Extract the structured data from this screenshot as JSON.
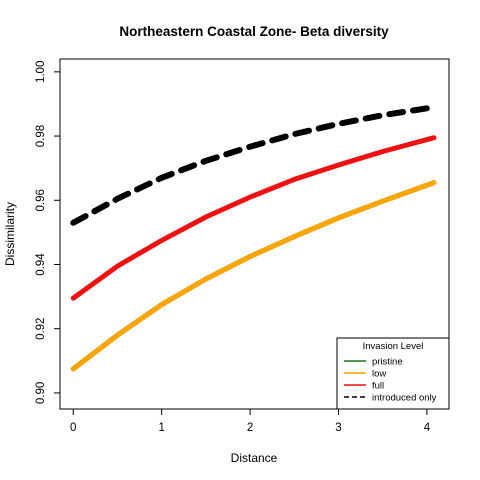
{
  "chart_data": {
    "type": "line",
    "title": "Northeastern Coastal Zone- Beta diversity",
    "xlabel": "Distance",
    "ylabel": "Dissimilarity",
    "xlim": [
      -0.15,
      4.25
    ],
    "ylim": [
      0.895,
      1.004
    ],
    "xticks": [
      0,
      1,
      2,
      3,
      4
    ],
    "xtick_labels": [
      "0",
      "1",
      "2",
      "3",
      "4"
    ],
    "yticks": [
      0.9,
      0.92,
      0.94,
      0.96,
      0.98,
      1.0
    ],
    "ytick_labels": [
      "0.90",
      "0.92",
      "0.94",
      "0.96",
      "0.98",
      "1.00"
    ],
    "grid": false,
    "legend": {
      "title": "Invasion Level",
      "position": "bottom-right"
    },
    "series": [
      {
        "name": "pristine",
        "color": "#1a7a1a",
        "dash": "solid",
        "x": [
          0,
          0.5,
          1,
          1.5,
          2,
          2.5,
          3,
          3.5,
          4.08
        ],
        "y": [
          0.9075,
          0.918,
          0.9275,
          0.9355,
          0.9425,
          0.9487,
          0.9545,
          0.9597,
          0.9655
        ]
      },
      {
        "name": "low",
        "color": "#ffa500",
        "dash": "solid",
        "x": [
          0,
          0.5,
          1,
          1.5,
          2,
          2.5,
          3,
          3.5,
          4.08
        ],
        "y": [
          0.9075,
          0.918,
          0.9275,
          0.9355,
          0.9425,
          0.9487,
          0.9545,
          0.9597,
          0.9655
        ]
      },
      {
        "name": "full",
        "color": "#ee1111",
        "dash": "solid",
        "x": [
          0,
          0.5,
          1,
          1.5,
          2,
          2.5,
          3,
          3.5,
          4.08
        ],
        "y": [
          0.9295,
          0.9395,
          0.9475,
          0.9548,
          0.961,
          0.9665,
          0.971,
          0.9752,
          0.9795
        ]
      },
      {
        "name": "introduced only",
        "color": "#000000",
        "dash": "dashed",
        "x": [
          0,
          0.5,
          1,
          1.5,
          2,
          2.5,
          3,
          3.5,
          4.08
        ],
        "y": [
          0.953,
          0.9605,
          0.967,
          0.9723,
          0.9767,
          0.9806,
          0.9838,
          0.9865,
          0.989
        ]
      }
    ]
  }
}
